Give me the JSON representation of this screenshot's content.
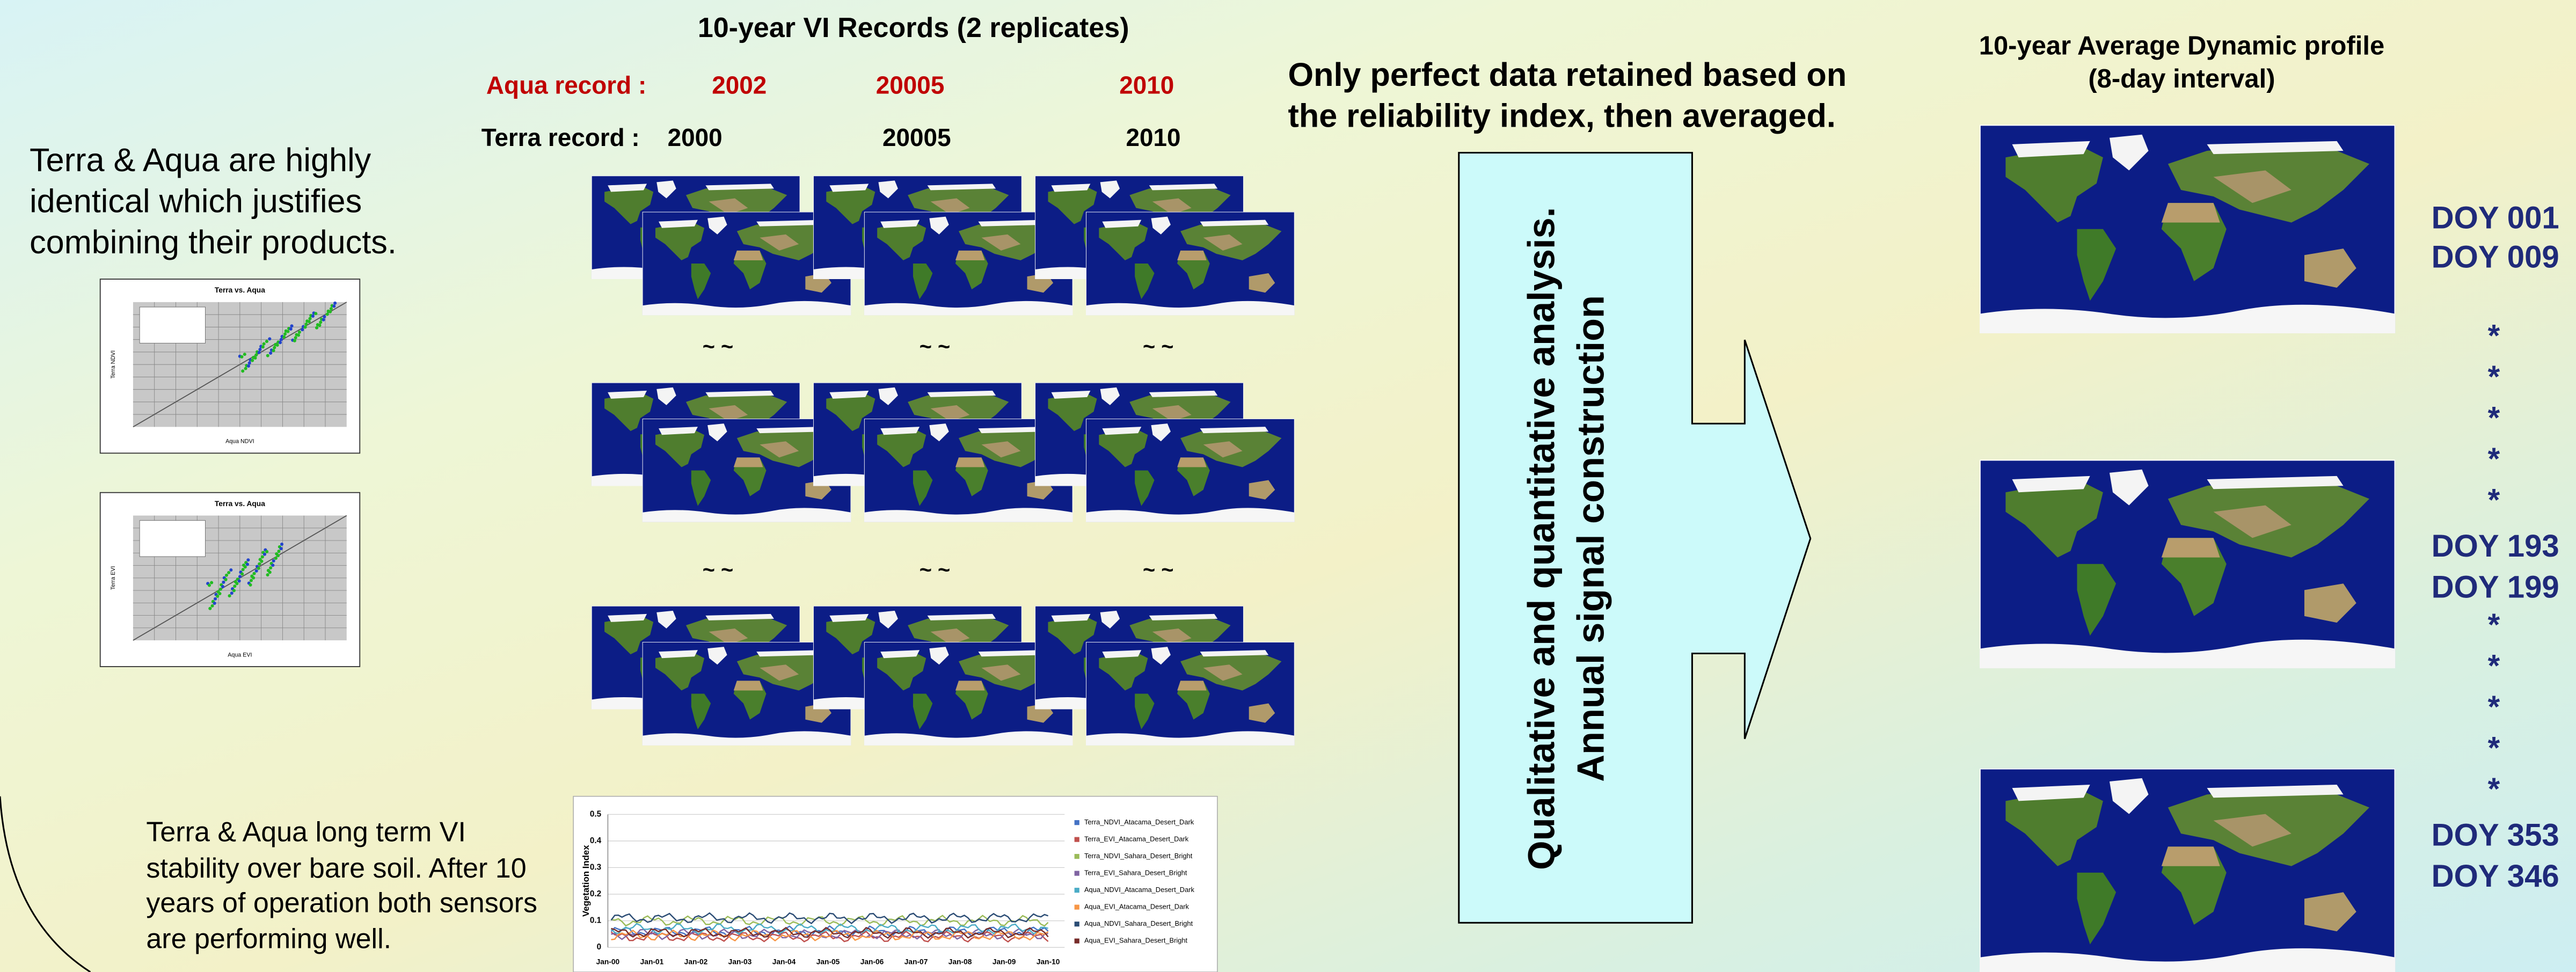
{
  "title": "10-year VI Records (2 replicates)",
  "aqua_record": {
    "label": "Aqua record :",
    "years": [
      "2002",
      "20005",
      "2010"
    ]
  },
  "terra_record": {
    "label": "Terra record :",
    "years": [
      "2000",
      "20005",
      "2010"
    ]
  },
  "left_note": [
    "Terra & Aqua are highly",
    "identical which justifies",
    "combining their products."
  ],
  "scatter_thumbs": [
    {
      "title": "Terra vs. Aqua",
      "x_label": "Aqua NDVI",
      "y_label": "Terra NDVI"
    },
    {
      "title": "Terra vs. Aqua",
      "x_label": "Aqua EVI",
      "y_label": "Terra EVI"
    }
  ],
  "separator": "~   ~",
  "stability_note": [
    "Terra & Aqua long term  VI",
    "stability over bare soil. After 10",
    "years of operation both sensors",
    "are performing well."
  ],
  "stability_chart": {
    "y_label": "Vegetation Index",
    "yticks": [
      "0",
      "0.1",
      "0.2",
      "0.3",
      "0.4",
      "0.5"
    ],
    "xticks": [
      "Jan-00",
      "Jan-01",
      "Jan-02",
      "Jan-03",
      "Jan-04",
      "Jan-05",
      "Jan-06",
      "Jan-07",
      "Jan-08",
      "Jan-09",
      "Jan-10"
    ],
    "legend": [
      "Terra_NDVI_Atacama_Desert_Dark",
      "Terra_EVI_Atacama_Desert_Dark",
      "Terra_NDVI_Sahara_Desert_Bright",
      "Terra_EVI_Sahara_Desert_Bright",
      "Aqua_NDVI_Atacama_Desert_Dark",
      "Aqua_EVI_Atacama_Desert_Dark",
      "Aqua_NDVI_Sahara_Desert_Bright",
      "Aqua_EVI_Sahara_Desert_Bright"
    ]
  },
  "process_note": [
    "Only perfect data retained based on",
    "the reliability index, then averaged."
  ],
  "arrow_text": [
    "Qualitative and quantitative analysis.",
    "Annual signal construction"
  ],
  "profile_title": [
    "10-year Average Dynamic profile",
    "(8-day interval)"
  ],
  "doy_labels": [
    "DOY 001",
    "DOY 009",
    "*",
    "*",
    "*",
    "*",
    "*",
    "DOY 193",
    "DOY 199",
    "*",
    "*",
    "*",
    "*",
    "*",
    "DOY 353",
    "DOY 346"
  ]
}
